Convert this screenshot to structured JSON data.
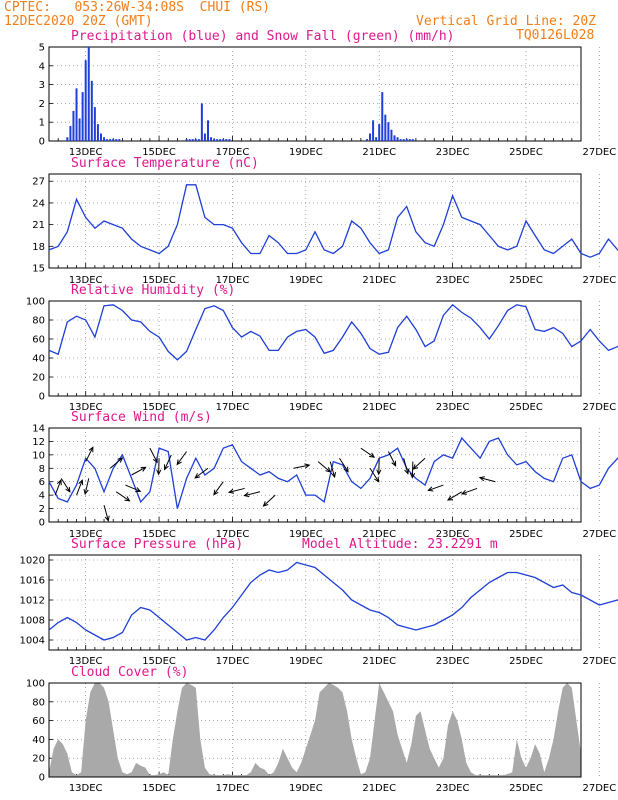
{
  "header": {
    "line1": "CPTEC:   053:26W-34:08S  CHUI (RS)",
    "line2": "12DEC2020 20Z (GMT)",
    "vgrid": "Vertical Grid Line: 20Z",
    "code": "TQ0126L028"
  },
  "colors": {
    "title": "#e0188c",
    "header": "#f07f1a",
    "line": "#1f3fd8",
    "precip": "#1f3fd8",
    "snow": "#2eaa2e",
    "cloud": "#a9a9a9"
  },
  "x_ticks": [
    "13DEC",
    "15DEC",
    "17DEC",
    "19DEC",
    "21DEC",
    "23DEC",
    "25DEC",
    "27DEC"
  ],
  "chart_data": [
    {
      "type": "bar",
      "title": "Precipitation (blue) and Snow Fall (green) (mm/h)",
      "ylim": [
        0,
        5
      ],
      "yticks": [
        0,
        1,
        2,
        3,
        4,
        5
      ],
      "series": [
        {
          "name": "Precipitation",
          "hour": [
            12,
            14,
            16,
            18,
            20,
            22,
            24,
            26,
            28,
            30,
            32,
            34,
            36,
            38,
            40,
            42,
            44,
            46,
            90,
            92,
            94,
            96,
            98,
            100,
            102,
            104,
            106,
            108,
            110,
            112,
            114,
            116,
            118,
            208,
            210,
            212,
            214,
            216,
            218,
            220,
            222,
            224,
            226,
            228,
            230,
            232,
            234,
            236,
            238
          ],
          "values": [
            0.2,
            0.8,
            1.6,
            2.8,
            1.2,
            2.6,
            4.3,
            5.0,
            3.2,
            1.8,
            0.9,
            0.4,
            0.2,
            0.1,
            0.1,
            0.1,
            0.1,
            0.1,
            0.1,
            0.1,
            0.1,
            0.1,
            0.1,
            2.0,
            0.4,
            1.1,
            0.2,
            0.1,
            0.1,
            0.1,
            0.1,
            0.1,
            0.1,
            0.1,
            0.4,
            1.1,
            0.2,
            0.9,
            2.6,
            1.4,
            1.0,
            0.6,
            0.3,
            0.2,
            0.1,
            0.1,
            0.1,
            0.1,
            0.1
          ]
        },
        {
          "name": "Snow Fall",
          "hour": [],
          "values": []
        }
      ]
    },
    {
      "type": "line",
      "title": "Surface Temperature (nC)",
      "ylim": [
        15,
        28
      ],
      "yticks": [
        15,
        18,
        21,
        24,
        27
      ],
      "hour_step": 6,
      "values": [
        17.5,
        18,
        20,
        24.5,
        22,
        20.5,
        21.5,
        21,
        20.5,
        19,
        18,
        17.5,
        17,
        18,
        21,
        26.5,
        26.5,
        22,
        21,
        21,
        20.5,
        18.5,
        17,
        17,
        19.5,
        18.5,
        17,
        17,
        17.5,
        20,
        17.5,
        17,
        18,
        21.5,
        20.5,
        18.5,
        17,
        17.5,
        22,
        23.5,
        20,
        18.5,
        18,
        21,
        25,
        22,
        21.5,
        21,
        19.5,
        18,
        17.5,
        18,
        21.5,
        19.5,
        17.5,
        17,
        18,
        19,
        17,
        16.5,
        17,
        19,
        17.5,
        16.5,
        16.5,
        18.5,
        19,
        17.5,
        16.5,
        16.5,
        17.5,
        21,
        19.5,
        17,
        17,
        18.5,
        22.5,
        22,
        20.5
      ]
    },
    {
      "type": "line",
      "title": "Relative Humidity (%)",
      "ylim": [
        0,
        100
      ],
      "yticks": [
        0,
        20,
        40,
        60,
        80,
        100
      ],
      "hour_step": 6,
      "values": [
        48,
        44,
        78,
        84,
        80,
        62,
        95,
        96,
        90,
        80,
        78,
        68,
        62,
        47,
        38,
        47,
        70,
        92,
        95,
        90,
        72,
        62,
        68,
        63,
        48,
        48,
        62,
        68,
        70,
        62,
        45,
        48,
        62,
        78,
        66,
        50,
        44,
        46,
        72,
        84,
        70,
        52,
        58,
        85,
        96,
        88,
        82,
        72,
        60,
        74,
        90,
        96,
        94,
        70,
        68,
        72,
        66,
        52,
        58,
        70,
        58,
        48,
        52,
        62,
        60,
        48,
        50,
        58,
        55,
        52,
        60,
        78,
        80,
        58,
        50,
        55,
        78,
        82,
        72
      ]
    },
    {
      "type": "line",
      "title": "Surface Wind (m/s)",
      "ylim": [
        0,
        14
      ],
      "yticks": [
        0,
        2,
        4,
        6,
        8,
        10,
        12,
        14
      ],
      "hour_step": 6,
      "values": [
        6,
        3.5,
        3,
        5.5,
        9.5,
        8,
        4.5,
        8,
        10,
        6.5,
        3,
        4.5,
        11,
        10.5,
        2,
        6.5,
        9.5,
        7,
        8,
        11,
        11.5,
        9,
        8,
        7,
        7.5,
        6.5,
        6,
        7,
        4,
        4,
        3,
        9,
        8.5,
        6,
        5,
        6.5,
        9.5,
        10,
        11,
        8,
        6.5,
        5.5,
        9,
        10,
        9.5,
        12.5,
        11,
        9.5,
        12,
        12.5,
        10,
        8.5,
        9,
        7.5,
        6.5,
        6,
        9.5,
        10,
        6,
        5,
        5.5,
        8,
        9.5,
        8,
        7,
        9.5,
        11,
        8,
        6,
        7.5,
        8,
        9,
        6,
        7,
        11.5
      ],
      "arrows": [
        [
          4,
          4,
          1.2
        ],
        [
          8,
          6.5,
          -1
        ],
        [
          18,
          4,
          1.2
        ],
        [
          24,
          9,
          1.1
        ],
        [
          26,
          6.5,
          -1.8
        ],
        [
          36,
          2.5,
          -1.3
        ],
        [
          40,
          8,
          0.7
        ],
        [
          44,
          4.5,
          -0.6
        ],
        [
          50,
          5.5,
          -0.4
        ],
        [
          54,
          7,
          0.5
        ],
        [
          66,
          11,
          -1.1
        ],
        [
          72,
          9.5,
          -1.6
        ],
        [
          80,
          10,
          -2
        ],
        [
          90,
          10.5,
          -2.2
        ],
        [
          104,
          8,
          -2.5
        ],
        [
          114,
          6,
          -2.2
        ],
        [
          128,
          5,
          -2.9
        ],
        [
          138,
          4.5,
          -2.9
        ],
        [
          148,
          4,
          -2.4
        ],
        [
          160,
          8,
          0.2
        ],
        [
          176,
          9,
          -0.7
        ],
        [
          184,
          9,
          -1.3
        ],
        [
          190,
          9.5,
          -1
        ],
        [
          204,
          11,
          -0.6
        ],
        [
          210,
          8,
          -1
        ],
        [
          216,
          9.5,
          -1.6
        ],
        [
          222,
          10.5,
          -1.1
        ],
        [
          232,
          9.5,
          -1.3
        ],
        [
          238,
          9,
          -1.6
        ],
        [
          246,
          9.5,
          -2.4
        ],
        [
          258,
          5.5,
          -2.8
        ],
        [
          270,
          4.5,
          -2.6
        ],
        [
          280,
          5,
          -2.8
        ],
        [
          292,
          6,
          -3.4
        ]
      ]
    },
    {
      "type": "line",
      "title": "Surface Pressure (hPa)",
      "subtitle": "Model Altitude: 23.2291 m",
      "ylim": [
        1002,
        1021
      ],
      "yticks": [
        1004,
        1008,
        1012,
        1016,
        1020
      ],
      "hour_step": 6,
      "values": [
        1006,
        1007.5,
        1008.5,
        1007.5,
        1006,
        1005,
        1004,
        1004.5,
        1005.5,
        1009,
        1010.5,
        1010,
        1008.5,
        1007,
        1005.5,
        1004,
        1004.5,
        1004,
        1006,
        1008.5,
        1010.5,
        1013,
        1015.5,
        1017,
        1018,
        1017.5,
        1018,
        1019.5,
        1019,
        1018.5,
        1017,
        1015.5,
        1014,
        1012,
        1011,
        1010,
        1009.5,
        1008.5,
        1007,
        1006.5,
        1006,
        1006.5,
        1007,
        1008,
        1009,
        1010.5,
        1012.5,
        1014,
        1015.5,
        1016.5,
        1017.5,
        1017.5,
        1017,
        1016.5,
        1015.5,
        1014.5,
        1015,
        1013.5,
        1013,
        1012,
        1011,
        1011.5,
        1012,
        1011
      ],
      "hour_step_note": ""
    },
    {
      "type": "area",
      "title": "Cloud Cover (%)",
      "ylim": [
        0,
        100
      ],
      "yticks": [
        0,
        20,
        40,
        60,
        80,
        100
      ],
      "hour_step": 3,
      "values": [
        5,
        30,
        40,
        35,
        25,
        5,
        2,
        5,
        60,
        90,
        100,
        100,
        95,
        80,
        50,
        20,
        5,
        3,
        5,
        15,
        12,
        10,
        2,
        2,
        3,
        5,
        2,
        40,
        70,
        95,
        100,
        98,
        95,
        40,
        10,
        3,
        2,
        2,
        2,
        3,
        2,
        2,
        2,
        2,
        5,
        15,
        10,
        8,
        2,
        5,
        15,
        30,
        20,
        10,
        5,
        15,
        30,
        45,
        60,
        90,
        95,
        100,
        98,
        95,
        90,
        70,
        40,
        20,
        3,
        5,
        20,
        60,
        100,
        90,
        80,
        70,
        45,
        30,
        15,
        35,
        65,
        70,
        50,
        30,
        20,
        10,
        20,
        55,
        70,
        60,
        40,
        15,
        5,
        2,
        2,
        2,
        2,
        2,
        2,
        2,
        3,
        5,
        40,
        20,
        10,
        20,
        35,
        25,
        5,
        20,
        40,
        70,
        95,
        100,
        95,
        60,
        25,
        5,
        8
      ]
    }
  ]
}
